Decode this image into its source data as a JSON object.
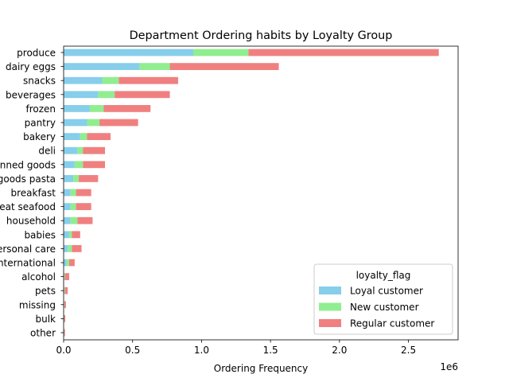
{
  "chart_data": {
    "type": "bar",
    "orientation": "horizontal",
    "stacked": true,
    "title": "Department Ordering habits by Loyalty Group",
    "xlabel": "Ordering Frequency",
    "x_offset_label": "1e6",
    "x_scale": 1000000,
    "xlim": [
      0,
      2.86
    ],
    "x_ticks": [
      {
        "value": 0.0,
        "label": "0.0"
      },
      {
        "value": 0.5,
        "label": "0.5"
      },
      {
        "value": 1.0,
        "label": "1.0"
      },
      {
        "value": 1.5,
        "label": "1.5"
      },
      {
        "value": 2.0,
        "label": "2.0"
      },
      {
        "value": 2.5,
        "label": "2.5"
      }
    ],
    "grid": false,
    "legend_title": "loyalty_flag",
    "legend_position": "lower-right",
    "categories": [
      "produce",
      "dairy eggs",
      "snacks",
      "beverages",
      "frozen",
      "pantry",
      "bakery",
      "deli",
      "canned goods",
      "dry goods pasta",
      "breakfast",
      "meat seafood",
      "household",
      "babies",
      "personal care",
      "international",
      "alcohol",
      "pets",
      "missing",
      "bulk",
      "other"
    ],
    "series": [
      {
        "name": "Loyal customer",
        "color": "#87ceeb",
        "values": [
          0.94,
          0.55,
          0.28,
          0.25,
          0.19,
          0.17,
          0.12,
          0.1,
          0.08,
          0.07,
          0.05,
          0.05,
          0.05,
          0.04,
          0.03,
          0.02,
          0.005,
          0.005,
          0.004,
          0.002,
          0.002
        ]
      },
      {
        "name": "New customer",
        "color": "#90ee90",
        "values": [
          0.4,
          0.22,
          0.12,
          0.12,
          0.1,
          0.09,
          0.05,
          0.04,
          0.06,
          0.04,
          0.04,
          0.04,
          0.05,
          0.02,
          0.03,
          0.02,
          0.005,
          0.005,
          0.003,
          0.002,
          0.002
        ]
      },
      {
        "name": "Regular customer",
        "color": "#f08080",
        "values": [
          1.38,
          0.79,
          0.43,
          0.4,
          0.34,
          0.28,
          0.17,
          0.16,
          0.16,
          0.14,
          0.11,
          0.11,
          0.11,
          0.06,
          0.07,
          0.04,
          0.03,
          0.02,
          0.01,
          0.008,
          0.006
        ]
      }
    ]
  }
}
